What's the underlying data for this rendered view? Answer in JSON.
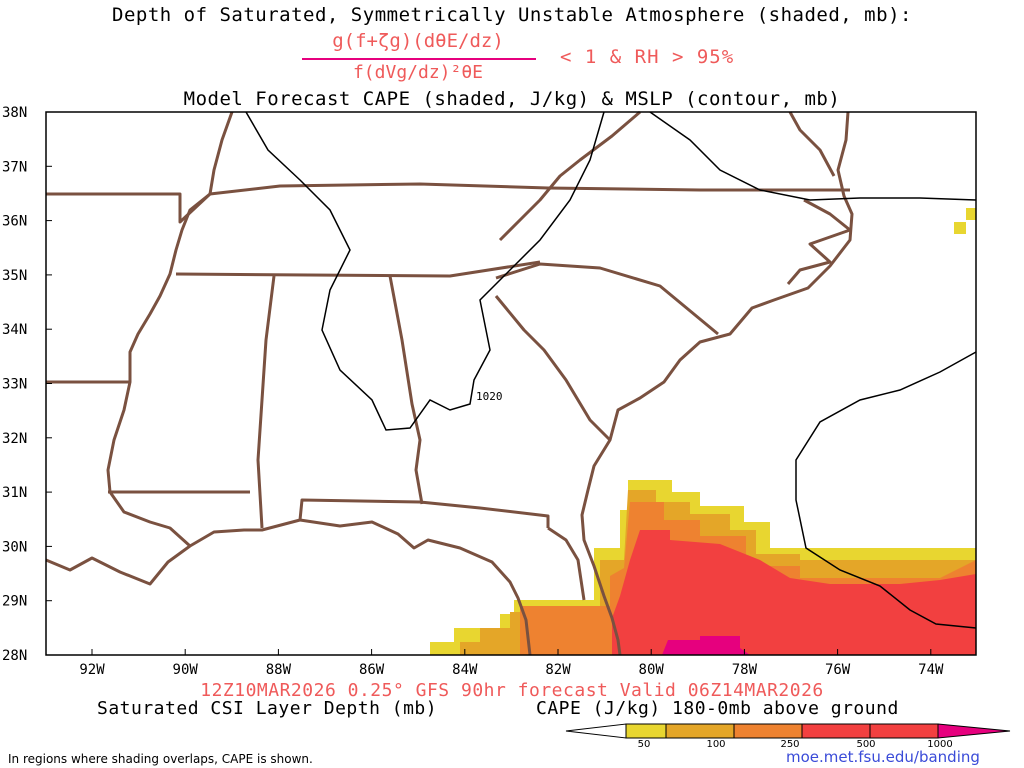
{
  "header": {
    "title_line1": "Depth of Saturated, Symmetrically Unstable Atmosphere (shaded, mb):",
    "fraction_numerator": "g(f+ζg)(dθE/dz)",
    "fraction_denominator": "f(dVg/dz)²θE",
    "condition": "< 1 & RH > 95%",
    "title_line2": "Model Forecast CAPE (shaded, J/kg) & MSLP (contour, mb)"
  },
  "map": {
    "lat_labels": [
      "38N",
      "37N",
      "36N",
      "35N",
      "34N",
      "33N",
      "32N",
      "31N",
      "30N",
      "29N",
      "28N"
    ],
    "lon_labels": [
      "92W",
      "90W",
      "88W",
      "86W",
      "84W",
      "82W",
      "80W",
      "78W",
      "76W",
      "74W"
    ],
    "isobar_label": "1020",
    "colors": {
      "state_border": "#7a5140",
      "cape_50": "#e8d630",
      "cape_100": "#e4a628",
      "cape_250": "#ee8230",
      "cape_500": "#f24040",
      "cape_1000": "#e6007e"
    }
  },
  "footer": {
    "valid_line": "12Z10MAR2026 0.25° GFS 90hr forecast Valid 06Z14MAR2026",
    "left_label": "Saturated CSI Layer Depth (mb)",
    "right_label": "CAPE (J/kg) 180-0mb above ground",
    "colorbar_ticks": [
      "50",
      "100",
      "250",
      "500",
      "1000"
    ],
    "note": "In regions where shading overlaps, CAPE is shown.",
    "credit": "moe.met.fsu.edu/banding"
  }
}
